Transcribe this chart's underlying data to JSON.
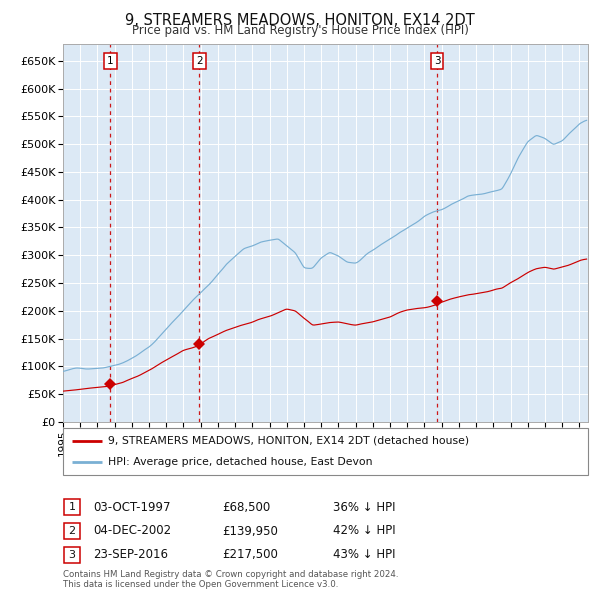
{
  "title": "9, STREAMERS MEADOWS, HONITON, EX14 2DT",
  "subtitle": "Price paid vs. HM Land Registry's House Price Index (HPI)",
  "bg_color": "#dce9f5",
  "hpi_color": "#7ab0d4",
  "price_color": "#cc0000",
  "grid_color": "#ffffff",
  "ylim": [
    0,
    680000
  ],
  "yticks": [
    0,
    50000,
    100000,
    150000,
    200000,
    250000,
    300000,
    350000,
    400000,
    450000,
    500000,
    550000,
    600000,
    650000
  ],
  "ytick_labels": [
    "£0",
    "£50K",
    "£100K",
    "£150K",
    "£200K",
    "£250K",
    "£300K",
    "£350K",
    "£400K",
    "£450K",
    "£500K",
    "£550K",
    "£600K",
    "£650K"
  ],
  "sale1_date": 1997.75,
  "sale1_price": 68500,
  "sale2_date": 2002.92,
  "sale2_price": 139950,
  "sale3_date": 2016.73,
  "sale3_price": 217500,
  "sale1_text": "03-OCT-1997",
  "sale1_amount": "£68,500",
  "sale1_hpi": "36% ↓ HPI",
  "sale2_text": "04-DEC-2002",
  "sale2_amount": "£139,950",
  "sale2_hpi": "42% ↓ HPI",
  "sale3_text": "23-SEP-2016",
  "sale3_amount": "£217,500",
  "sale3_hpi": "43% ↓ HPI",
  "legend_line1": "9, STREAMERS MEADOWS, HONITON, EX14 2DT (detached house)",
  "legend_line2": "HPI: Average price, detached house, East Devon",
  "footer1": "Contains HM Land Registry data © Crown copyright and database right 2024.",
  "footer2": "This data is licensed under the Open Government Licence v3.0.",
  "xmin": 1995.0,
  "xmax": 2025.5
}
